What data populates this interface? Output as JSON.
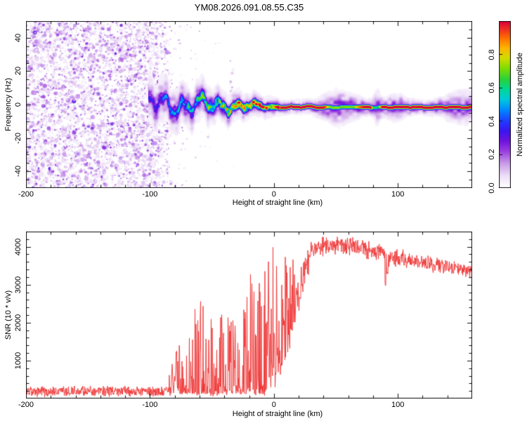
{
  "title": "YM08.2026.091.08.55.C35",
  "axes": {
    "x_label": "Height of straight line (km)",
    "spec_y_label": "Frequency (Hz)",
    "snr_y_label": "SNR (10 * v/v)",
    "colorbar_label": "Normalized spectral amplitude"
  },
  "colors": {
    "line": "#ee3232",
    "frame": "#111111",
    "background": "#ffffff"
  },
  "chart_data": [
    {
      "type": "heatmap",
      "title": "YM08.2026.091.08.55.C35",
      "xlabel": "Height of straight line (km)",
      "ylabel": "Frequency (Hz)",
      "xlim": [
        -200,
        160
      ],
      "ylim": [
        -50,
        50
      ],
      "xticks": [
        -200,
        -100,
        0,
        100
      ],
      "xtick_labels": [
        "-200",
        "-100",
        "0",
        "100"
      ],
      "yticks": [
        40,
        20,
        0,
        -20,
        -40
      ],
      "ytick_labels": [
        "40",
        "20",
        "0",
        "-20",
        "-40"
      ],
      "x_minor_step": 20,
      "y_minor_step": 5,
      "grid": false,
      "colorbar": {
        "label": "Normalized spectral amplitude",
        "ticks": [
          0.0,
          0.2,
          0.4,
          0.6,
          0.8
        ],
        "tick_labels": [
          "0.0",
          "0.2",
          "0.4",
          "0.6",
          "0.8"
        ],
        "range": [
          0,
          1
        ],
        "colormap": [
          [
            0.0,
            "#ffffff"
          ],
          [
            0.07,
            "#eee0f8"
          ],
          [
            0.15,
            "#c796e6"
          ],
          [
            0.22,
            "#9a3ce0"
          ],
          [
            0.28,
            "#6e14dc"
          ],
          [
            0.34,
            "#3c14f0"
          ],
          [
            0.4,
            "#1e3cff"
          ],
          [
            0.47,
            "#008cff"
          ],
          [
            0.53,
            "#00c8dc"
          ],
          [
            0.59,
            "#00d796"
          ],
          [
            0.65,
            "#28d23c"
          ],
          [
            0.72,
            "#82dc00"
          ],
          [
            0.78,
            "#d2dc00"
          ],
          [
            0.84,
            "#ffb400"
          ],
          [
            0.9,
            "#ff6e00"
          ],
          [
            0.95,
            "#f03220"
          ],
          [
            1.0,
            "#dc003c"
          ]
        ]
      },
      "noise_field": {
        "description": "dense purple speckle noise over all frequencies before signal acquisition",
        "x_range_km": [
          -200,
          -89
        ],
        "value_range": [
          0.04,
          0.33
        ]
      },
      "sparse_speckle": {
        "x_range_km": [
          -89,
          -30
        ],
        "decay_km": 16,
        "wisp_km": -34
      },
      "signal_trace": {
        "description": "wavy Doppler trace near 0 Hz converging to a thin intense line slightly below 0 Hz",
        "baseline_hz": [
          [
            -101,
            0.5
          ],
          [
            -60,
            0.0
          ],
          [
            -20,
            -0.8
          ],
          [
            0,
            -1.3
          ],
          [
            160,
            -1.45
          ]
        ],
        "wander_amp_hz": [
          [
            -101,
            7.5
          ],
          [
            -60,
            5.5
          ],
          [
            -30,
            3.0
          ],
          [
            -10,
            1.5
          ],
          [
            0,
            0.45
          ],
          [
            160,
            0.15
          ]
        ],
        "core_sigma_hz": [
          [
            -101,
            3.4
          ],
          [
            -60,
            2.9
          ],
          [
            -30,
            2.1
          ],
          [
            0,
            1.4
          ],
          [
            10,
            1.05
          ],
          [
            160,
            1.05
          ]
        ],
        "intensity": [
          [
            -101,
            0.32
          ],
          [
            -80,
            0.45
          ],
          [
            -65,
            0.55
          ],
          [
            -52,
            0.65
          ],
          [
            -42,
            0.75
          ],
          [
            -32,
            0.85
          ],
          [
            -24,
            0.92
          ],
          [
            -16,
            1.0
          ],
          [
            -10,
            0.95
          ],
          [
            -4,
            1.0
          ],
          [
            2,
            0.97
          ],
          [
            10,
            1.0
          ],
          [
            40,
            1.0
          ],
          [
            44,
            0.72
          ],
          [
            64,
            0.7
          ],
          [
            68,
            0.9
          ],
          [
            72,
            1.0
          ],
          [
            78,
            1.0
          ],
          [
            80,
            0.6
          ],
          [
            84,
            0.6
          ],
          [
            87,
            1.0
          ],
          [
            120,
            1.0
          ],
          [
            160,
            1.0
          ]
        ],
        "halo_bulges": [
          {
            "center_km": 53,
            "sigma_km": 11,
            "extra_hz": 3.4
          },
          {
            "center_km": 83,
            "sigma_km": 2.5,
            "extra_hz": 2.6
          },
          {
            "center_km": 98,
            "sigma_km": 7,
            "extra_hz": 2.2
          },
          {
            "center_km": 152,
            "sigma_km": 12,
            "extra_hz": 3.0
          }
        ]
      }
    },
    {
      "type": "line",
      "xlabel": "Height of straight line (km)",
      "ylabel": "SNR (10 * v/v)",
      "xlim": [
        -200,
        160
      ],
      "ylim": [
        0,
        4400
      ],
      "xticks": [
        -200,
        -100,
        0,
        100
      ],
      "xtick_labels": [
        "-200",
        "-100",
        "0",
        "100"
      ],
      "yticks": [
        1000,
        2000,
        3000,
        4000
      ],
      "ytick_labels": [
        "1000",
        "2000",
        "3000",
        "4000"
      ],
      "x_minor_step": 20,
      "y_minor_step": 200,
      "grid": false,
      "line_color": "#ee3232",
      "series_envelope_comment": "anchors of [height_km, mean_snr, noise_amplitude, spikiness 0..1]; spiky regions are intermittent bursts rising from a near-zero floor",
      "series_envelope": [
        [
          -200,
          190,
          150,
          0
        ],
        [
          -91,
          190,
          150,
          0
        ],
        [
          -86,
          240,
          240,
          0.55
        ],
        [
          -80,
          500,
          700,
          0.95
        ],
        [
          -72,
          800,
          1400,
          1
        ],
        [
          -64,
          900,
          1900,
          1
        ],
        [
          -56,
          850,
          1700,
          1
        ],
        [
          -48,
          700,
          1300,
          1
        ],
        [
          -40,
          800,
          1500,
          1
        ],
        [
          -32,
          1100,
          2200,
          1
        ],
        [
          -26,
          1000,
          1900,
          1
        ],
        [
          -20,
          1100,
          2100,
          1
        ],
        [
          -14,
          1300,
          2400,
          1
        ],
        [
          -8,
          1600,
          2700,
          1
        ],
        [
          -4,
          1900,
          2500,
          0.95
        ],
        [
          0,
          2300,
          2100,
          0.85
        ],
        [
          4,
          2600,
          1800,
          0.75
        ],
        [
          9,
          3000,
          1400,
          0.6
        ],
        [
          14,
          3300,
          1000,
          0.45
        ],
        [
          20,
          3600,
          700,
          0.3
        ],
        [
          26,
          3850,
          400,
          0.12
        ],
        [
          32,
          3950,
          320,
          0
        ],
        [
          45,
          4020,
          300,
          0
        ],
        [
          58,
          4030,
          290,
          0
        ],
        [
          70,
          3980,
          280,
          0
        ],
        [
          80,
          3880,
          290,
          0
        ],
        [
          88,
          3800,
          310,
          0
        ],
        [
          96,
          3730,
          300,
          0
        ],
        [
          108,
          3660,
          260,
          0
        ],
        [
          120,
          3580,
          240,
          0
        ],
        [
          132,
          3520,
          230,
          0
        ],
        [
          144,
          3440,
          220,
          0
        ],
        [
          160,
          3340,
          220,
          0
        ]
      ],
      "dips": [
        [
          90,
          2950
        ],
        [
          91.5,
          3250
        ]
      ]
    }
  ]
}
